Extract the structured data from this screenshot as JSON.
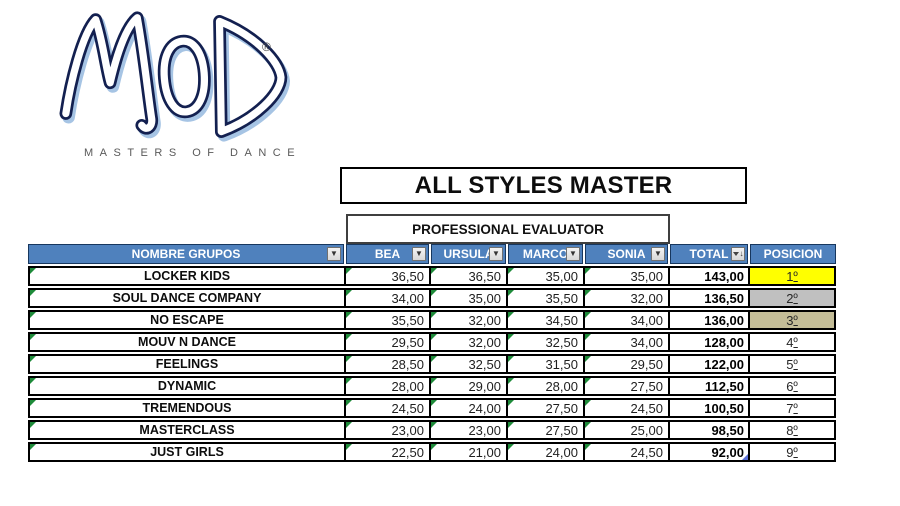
{
  "logo": {
    "brand": "MOD",
    "registered": "®",
    "tagline": "MASTERS OF DANCE"
  },
  "title": "ALL STYLES MASTER",
  "evaluator_header": "PROFESSIONAL EVALUATOR",
  "icons": {
    "filter_dropdown": "▼",
    "sort_descending": "↓"
  },
  "colors": {
    "header_bg": "#4F81BD",
    "header_border": "#17375E",
    "triangle_green": "#1E8B3A",
    "marker_blue": "#5B6FD4",
    "gold": "#FFFF00",
    "silver": "#C0C0C0",
    "bronze": "#C4BD97"
  },
  "table": {
    "columns": {
      "name": "NOMBRE GRUPOS",
      "judges": [
        "BEA",
        "URSULA",
        "MARCO",
        "SONIA"
      ],
      "total": "TOTAL",
      "position": "POSICION"
    },
    "rows": [
      {
        "name": "LOCKER KIDS",
        "scores": [
          "36,50",
          "36,50",
          "35,00",
          "35,00"
        ],
        "total": "143,00",
        "pos": "1º",
        "pos_bg": "#FFFF00"
      },
      {
        "name": "SOUL DANCE COMPANY",
        "scores": [
          "34,00",
          "35,00",
          "35,50",
          "32,00"
        ],
        "total": "136,50",
        "pos": "2º",
        "pos_bg": "#C0C0C0"
      },
      {
        "name": "NO ESCAPE",
        "scores": [
          "35,50",
          "32,00",
          "34,50",
          "34,00"
        ],
        "total": "136,00",
        "pos": "3º",
        "pos_bg": "#C4BD97"
      },
      {
        "name": "MOUV N DANCE",
        "scores": [
          "29,50",
          "32,00",
          "32,50",
          "34,00"
        ],
        "total": "128,00",
        "pos": "4º",
        "pos_bg": ""
      },
      {
        "name": "FEELINGS",
        "scores": [
          "28,50",
          "32,50",
          "31,50",
          "29,50"
        ],
        "total": "122,00",
        "pos": "5º",
        "pos_bg": ""
      },
      {
        "name": "DYNAMIC",
        "scores": [
          "28,00",
          "29,00",
          "28,00",
          "27,50"
        ],
        "total": "112,50",
        "pos": "6º",
        "pos_bg": ""
      },
      {
        "name": "TREMENDOUS",
        "scores": [
          "24,50",
          "24,00",
          "27,50",
          "24,50"
        ],
        "total": "100,50",
        "pos": "7º",
        "pos_bg": ""
      },
      {
        "name": "MASTERCLASS",
        "scores": [
          "23,00",
          "23,00",
          "27,50",
          "25,00"
        ],
        "total": "98,50",
        "pos": "8º",
        "pos_bg": ""
      },
      {
        "name": "JUST GIRLS",
        "scores": [
          "22,50",
          "21,00",
          "24,00",
          "24,50"
        ],
        "total": "92,00",
        "pos": "9º",
        "pos_bg": "",
        "comment_marker": true
      }
    ]
  }
}
